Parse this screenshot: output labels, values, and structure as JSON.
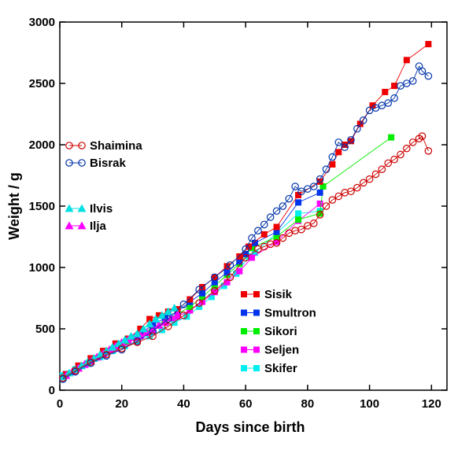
{
  "chart_data": {
    "type": "scatter",
    "title": "",
    "xlabel": "Days since birth",
    "ylabel": "Weight / g",
    "xlim": [
      0,
      125
    ],
    "ylim": [
      0,
      3000
    ],
    "xticks": [
      0,
      20,
      40,
      60,
      80,
      100,
      120
    ],
    "yticks": [
      0,
      500,
      1000,
      1500,
      2000,
      2500,
      3000
    ],
    "grid": false,
    "series": [
      {
        "name": "Shaimina",
        "color": "#cc0000",
        "marker": "open-circle",
        "line": true,
        "x": [
          1,
          5,
          10,
          15,
          20,
          25,
          30,
          35,
          40,
          45,
          50,
          55,
          60,
          64,
          66,
          68,
          70,
          72,
          74,
          76,
          78,
          80,
          82,
          84,
          86,
          88,
          90,
          92,
          94,
          96,
          98,
          100,
          102,
          104,
          106,
          108,
          110,
          112,
          114,
          116,
          117,
          119
        ],
        "y": [
          100,
          160,
          230,
          290,
          340,
          390,
          440,
          520,
          610,
          710,
          810,
          920,
          1080,
          1150,
          1170,
          1190,
          1200,
          1240,
          1280,
          1300,
          1310,
          1340,
          1360,
          1430,
          1500,
          1550,
          1580,
          1610,
          1620,
          1650,
          1690,
          1720,
          1760,
          1800,
          1850,
          1880,
          1920,
          1970,
          2020,
          2050,
          2070,
          1950
        ]
      },
      {
        "name": "Bisrak",
        "color": "#0033aa",
        "marker": "open-circle",
        "line": true,
        "x": [
          1,
          5,
          10,
          15,
          20,
          25,
          30,
          35,
          40,
          45,
          50,
          55,
          60,
          62,
          64,
          66,
          68,
          70,
          72,
          74,
          76,
          78,
          80,
          82,
          84,
          86,
          88,
          90,
          92,
          94,
          96,
          98,
          100,
          102,
          104,
          106,
          108,
          110,
          112,
          114,
          116,
          117,
          119
        ],
        "y": [
          90,
          150,
          220,
          280,
          330,
          400,
          480,
          580,
          700,
          820,
          920,
          1020,
          1150,
          1240,
          1300,
          1350,
          1410,
          1460,
          1500,
          1560,
          1660,
          1620,
          1640,
          1660,
          1720,
          1800,
          1900,
          2020,
          1980,
          2040,
          2130,
          2200,
          2280,
          2300,
          2320,
          2340,
          2380,
          2480,
          2500,
          2520,
          2640,
          2600,
          2560
        ]
      },
      {
        "name": "Ilvis",
        "color": "#00e0e0",
        "marker": "filled-triangle",
        "line": true,
        "x": [
          1,
          3,
          5,
          7,
          9,
          11,
          13,
          15,
          17,
          19,
          21,
          23,
          25,
          27,
          29,
          31,
          33,
          35,
          37
        ],
        "y": [
          110,
          140,
          170,
          200,
          230,
          260,
          290,
          320,
          350,
          380,
          410,
          440,
          460,
          500,
          540,
          580,
          610,
          640,
          670
        ]
      },
      {
        "name": "Ilja",
        "color": "#ff00ff",
        "marker": "filled-triangle",
        "line": true,
        "x": [
          2,
          4,
          6,
          8,
          10,
          12,
          14,
          16,
          18,
          20,
          22,
          24,
          26,
          28,
          30,
          32,
          34,
          36,
          38
        ],
        "y": [
          120,
          150,
          180,
          210,
          240,
          270,
          300,
          330,
          360,
          390,
          410,
          430,
          450,
          470,
          500,
          530,
          560,
          590,
          620
        ]
      },
      {
        "name": "Sisik",
        "color": "#ee0000",
        "marker": "filled-square",
        "line": true,
        "x": [
          2,
          6,
          10,
          14,
          18,
          22,
          26,
          29,
          32,
          35,
          38,
          42,
          46,
          50,
          54,
          58,
          61,
          66,
          70,
          77,
          84,
          88,
          90,
          92,
          94,
          97,
          101,
          105,
          108,
          112,
          119
        ],
        "y": [
          130,
          200,
          260,
          320,
          380,
          420,
          500,
          580,
          610,
          640,
          660,
          740,
          840,
          920,
          1010,
          1090,
          1170,
          1270,
          1330,
          1590,
          1700,
          1840,
          1940,
          2000,
          2030,
          2170,
          2320,
          2430,
          2480,
          2690,
          2820
        ]
      },
      {
        "name": "Smultron",
        "color": "#0033ee",
        "marker": "filled-square",
        "line": true,
        "x": [
          2,
          6,
          10,
          14,
          18,
          22,
          26,
          30,
          34,
          38,
          42,
          46,
          50,
          54,
          58,
          60,
          63,
          70,
          77,
          84
        ],
        "y": [
          130,
          190,
          250,
          310,
          360,
          410,
          460,
          530,
          590,
          640,
          720,
          790,
          880,
          960,
          1050,
          1110,
          1200,
          1290,
          1530,
          1610
        ]
      },
      {
        "name": "Sikori",
        "color": "#00ee00",
        "marker": "filled-square",
        "line": true,
        "x": [
          2,
          6,
          10,
          14,
          18,
          22,
          26,
          30,
          34,
          38,
          42,
          46,
          50,
          54,
          58,
          62,
          70,
          77,
          84,
          85,
          107
        ],
        "y": [
          130,
          190,
          250,
          300,
          350,
          400,
          450,
          510,
          570,
          620,
          680,
          760,
          850,
          940,
          1030,
          1160,
          1250,
          1390,
          1440,
          1660,
          2060
        ]
      },
      {
        "name": "Seljen",
        "color": "#ff00ff",
        "marker": "filled-square",
        "line": true,
        "x": [
          2,
          6,
          10,
          14,
          18,
          22,
          26,
          30,
          34,
          38,
          42,
          46,
          50,
          54,
          58,
          62,
          70,
          77,
          84
        ],
        "y": [
          130,
          180,
          240,
          290,
          340,
          390,
          440,
          490,
          550,
          600,
          650,
          720,
          800,
          880,
          970,
          1080,
          1210,
          1380,
          1520
        ]
      },
      {
        "name": "Skifer",
        "color": "#00eeee",
        "marker": "filled-square",
        "line": true,
        "x": [
          1,
          5,
          9,
          13,
          17,
          21,
          25,
          29,
          33,
          37,
          41,
          45,
          49,
          53,
          57,
          61,
          63,
          70,
          77,
          84
        ],
        "y": [
          120,
          170,
          220,
          270,
          320,
          360,
          400,
          440,
          490,
          550,
          600,
          680,
          760,
          850,
          950,
          1090,
          1120,
          1280,
          1440,
          1460
        ]
      }
    ],
    "legends": [
      {
        "series": [
          "Shaimina",
          "Bisrak"
        ],
        "placement": "left-middle"
      },
      {
        "series": [
          "Ilvis",
          "Ilja"
        ],
        "placement": "left-middle-lower"
      },
      {
        "series": [
          "Sisik",
          "Smultron",
          "Sikori",
          "Seljen",
          "Skifer"
        ],
        "placement": "bottom-right"
      }
    ]
  }
}
